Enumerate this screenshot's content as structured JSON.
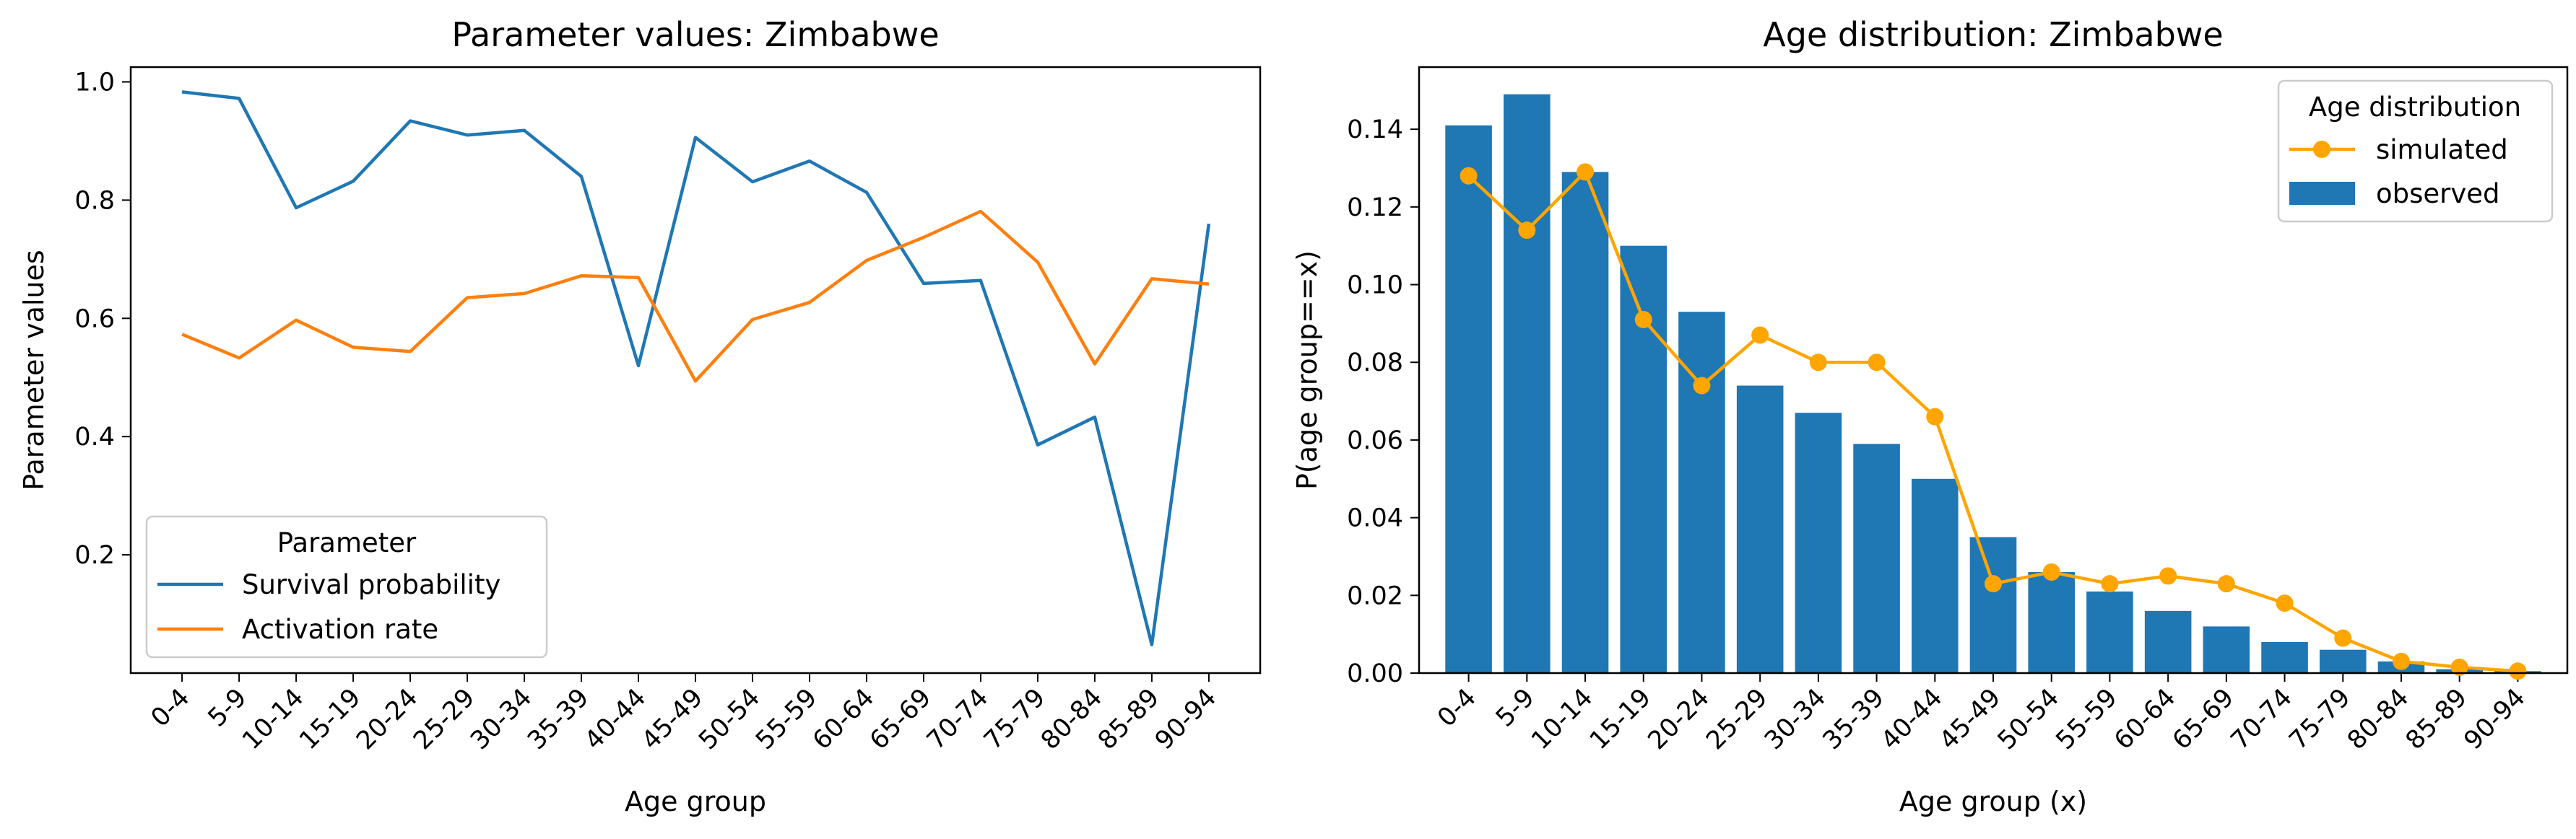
{
  "chart_data": [
    {
      "type": "line",
      "title": "Parameter values: Zimbabwe",
      "xlabel": "Age group",
      "ylabel": "Parameter values",
      "categories": [
        "0-4",
        "5-9",
        "10-14",
        "15-19",
        "20-24",
        "25-29",
        "30-34",
        "35-39",
        "40-44",
        "45-49",
        "50-54",
        "55-59",
        "60-64",
        "65-69",
        "70-74",
        "75-79",
        "80-84",
        "85-89",
        "90-94"
      ],
      "yticks": [
        "0.2",
        "0.4",
        "0.6",
        "0.8",
        "1.0"
      ],
      "ylim": [
        0.0,
        1.025
      ],
      "grid": false,
      "legend": {
        "title": "Parameter",
        "placement": "lower-left"
      },
      "series": [
        {
          "name": "Survival probability",
          "color": "#1f77b4",
          "values": [
            0.983,
            0.972,
            0.787,
            0.832,
            0.934,
            0.91,
            0.918,
            0.84,
            0.52,
            0.906,
            0.831,
            0.866,
            0.813,
            0.659,
            0.664,
            0.386,
            0.433,
            0.048,
            0.76
          ]
        },
        {
          "name": "Activation rate",
          "color": "#ff7f0e",
          "values": [
            0.573,
            0.533,
            0.597,
            0.551,
            0.544,
            0.635,
            0.642,
            0.672,
            0.669,
            0.494,
            0.598,
            0.627,
            0.698,
            0.737,
            0.781,
            0.695,
            0.523,
            0.667,
            0.658
          ]
        }
      ]
    },
    {
      "type": "bar",
      "title": "Age distribution: Zimbabwe",
      "xlabel": "Age group (x)",
      "ylabel": "P(age group==x)",
      "categories": [
        "0-4",
        "5-9",
        "10-14",
        "15-19",
        "20-24",
        "25-29",
        "30-34",
        "35-39",
        "40-44",
        "45-49",
        "50-54",
        "55-59",
        "60-64",
        "65-69",
        "70-74",
        "75-79",
        "80-84",
        "85-89",
        "90-94"
      ],
      "yticks": [
        "0.00",
        "0.02",
        "0.04",
        "0.06",
        "0.08",
        "0.10",
        "0.12",
        "0.14"
      ],
      "ylim": [
        0.0,
        0.156
      ],
      "grid": false,
      "legend": {
        "title": "Age distribution",
        "placement": "top-right"
      },
      "series": [
        {
          "name": "observed",
          "type": "bar",
          "color": "#1f77b4",
          "values": [
            0.141,
            0.149,
            0.129,
            0.11,
            0.093,
            0.074,
            0.067,
            0.059,
            0.05,
            0.035,
            0.026,
            0.021,
            0.016,
            0.012,
            0.008,
            0.006,
            0.003,
            0.001,
            0.0005
          ]
        },
        {
          "name": "simulated",
          "type": "line",
          "marker": "circle",
          "color": "#ffa500",
          "values": [
            0.128,
            0.114,
            0.129,
            0.091,
            0.074,
            0.087,
            0.08,
            0.08,
            0.066,
            0.023,
            0.026,
            0.023,
            0.025,
            0.023,
            0.018,
            0.009,
            0.003,
            0.0015,
            0.0005
          ]
        }
      ]
    }
  ]
}
